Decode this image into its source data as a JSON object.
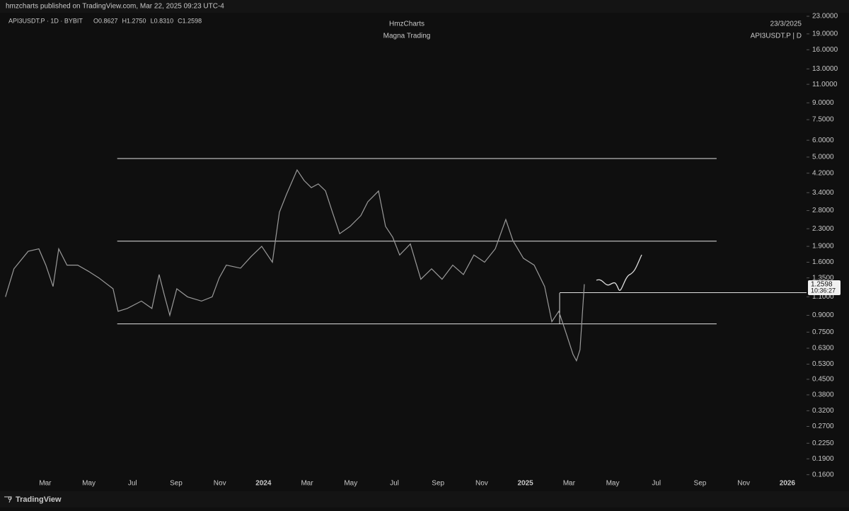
{
  "header": {
    "publisher": "hmzcharts published on TradingView.com, Mar 22, 2025 09:23 UTC-4",
    "footer": "TradingView"
  },
  "chart_data": {
    "type": "line",
    "title": "HmzCharts",
    "subtitle": "Magna Trading",
    "symbol": "API3USDT.P · 1D · BYBIT",
    "ohlc": [
      "O0.8627",
      "H1.2750",
      "L0.8310",
      "C1.2598"
    ],
    "date_label": "23/3/2025",
    "symbol_label": "API3USDT.P | D",
    "price_label": [
      "1.2598",
      "10:36:27"
    ],
    "log_scale": true,
    "grid": false,
    "xlim": [
      -0.07,
      36.88
    ],
    "ylim": [
      0.149,
      24.45
    ],
    "xticks": [
      {
        "value": 2,
        "label": "Mar"
      },
      {
        "value": 4,
        "label": "May"
      },
      {
        "value": 6,
        "label": "Jul"
      },
      {
        "value": 8,
        "label": "Sep"
      },
      {
        "value": 10,
        "label": "Nov"
      },
      {
        "value": 12,
        "label": "2024"
      },
      {
        "value": 14,
        "label": "Mar"
      },
      {
        "value": 16,
        "label": "May"
      },
      {
        "value": 18,
        "label": "Jul"
      },
      {
        "value": 20,
        "label": "Sep"
      },
      {
        "value": 22,
        "label": "Nov"
      },
      {
        "value": 24,
        "label": "2025"
      },
      {
        "value": 26,
        "label": "Mar"
      },
      {
        "value": 28,
        "label": "May"
      },
      {
        "value": 30,
        "label": "Jul"
      },
      {
        "value": 32,
        "label": "Sep"
      },
      {
        "value": 34,
        "label": "Nov"
      },
      {
        "value": 36,
        "label": "2026"
      }
    ],
    "yticks": [
      {
        "value": 23,
        "label": "23.0000"
      },
      {
        "value": 19,
        "label": "19.0000"
      },
      {
        "value": 16,
        "label": "16.0000"
      },
      {
        "value": 13,
        "label": "13.0000"
      },
      {
        "value": 11,
        "label": "11.0000"
      },
      {
        "value": 9,
        "label": "9.0000"
      },
      {
        "value": 7.5,
        "label": "7.5000"
      },
      {
        "value": 6,
        "label": "6.0000"
      },
      {
        "value": 5,
        "label": "5.0000"
      },
      {
        "value": 4.2,
        "label": "4.2000"
      },
      {
        "value": 3.4,
        "label": "3.4000"
      },
      {
        "value": 2.8,
        "label": "2.8000"
      },
      {
        "value": 2.3,
        "label": "2.3000"
      },
      {
        "value": 1.9,
        "label": "1.9000"
      },
      {
        "value": 1.6,
        "label": "1.6000"
      },
      {
        "value": 1.35,
        "label": "1.3500"
      },
      {
        "value": 1.1,
        "label": "1.1000"
      },
      {
        "value": 0.9,
        "label": "0.9000"
      },
      {
        "value": 0.75,
        "label": "0.7500"
      },
      {
        "value": 0.63,
        "label": "0.6300"
      },
      {
        "value": 0.53,
        "label": "0.5300"
      },
      {
        "value": 0.45,
        "label": "0.4500"
      },
      {
        "value": 0.38,
        "label": "0.3800"
      },
      {
        "value": 0.32,
        "label": "0.3200"
      },
      {
        "value": 0.27,
        "label": "0.2700"
      },
      {
        "value": 0.225,
        "label": "0.2250"
      },
      {
        "value": 0.19,
        "label": "0.1900"
      },
      {
        "value": 0.16,
        "label": "0.1600"
      }
    ],
    "x": [
      0.18,
      0.57,
      1.22,
      1.71,
      2.03,
      2.36,
      2.62,
      3.0,
      3.49,
      3.98,
      4.46,
      5.11,
      5.34,
      5.76,
      6.41,
      6.89,
      7.22,
      7.45,
      7.71,
      8.03,
      8.52,
      9.16,
      9.65,
      9.97,
      10.3,
      10.95,
      11.43,
      11.92,
      12.41,
      12.73,
      13.05,
      13.54,
      13.86,
      14.19,
      14.51,
      14.84,
      15.16,
      15.49,
      15.97,
      16.46,
      16.78,
      17.27,
      17.59,
      17.92,
      18.24,
      18.73,
      19.21,
      19.7,
      20.18,
      20.67,
      21.16,
      21.64,
      22.13,
      22.62,
      23.1,
      23.43,
      23.91,
      24.4,
      24.88,
      25.21,
      25.53,
      25.85,
      26.18,
      26.34,
      26.5,
      26.7
    ],
    "series": [
      {
        "color": "#9a9a9a",
        "values": [
          1.1,
          1.49,
          1.8,
          1.85,
          1.55,
          1.23,
          1.85,
          1.55,
          1.55,
          1.45,
          1.35,
          1.2,
          0.94,
          0.97,
          1.05,
          0.97,
          1.4,
          1.13,
          0.9,
          1.2,
          1.1,
          1.05,
          1.1,
          1.35,
          1.55,
          1.5,
          1.7,
          1.9,
          1.6,
          2.75,
          3.33,
          4.35,
          3.88,
          3.59,
          3.74,
          3.47,
          2.75,
          2.18,
          2.36,
          2.65,
          3.08,
          3.46,
          2.36,
          2.1,
          1.73,
          1.95,
          1.33,
          1.49,
          1.33,
          1.55,
          1.4,
          1.73,
          1.6,
          1.85,
          2.54,
          2.02,
          1.67,
          1.55,
          1.23,
          0.84,
          0.94,
          0.75,
          0.59,
          0.55,
          0.62,
          1.26
        ]
      }
    ],
    "levels": [
      {
        "value": 4.92,
        "x": [
          5.3,
          32.76
        ]
      },
      {
        "value": 2.01,
        "x": [
          5.3,
          32.76
        ]
      },
      {
        "value": 0.82,
        "x": [
          5.3,
          32.76
        ]
      },
      {
        "value": 1.15,
        "x": [
          25.57,
          36.88
        ]
      }
    ]
  }
}
